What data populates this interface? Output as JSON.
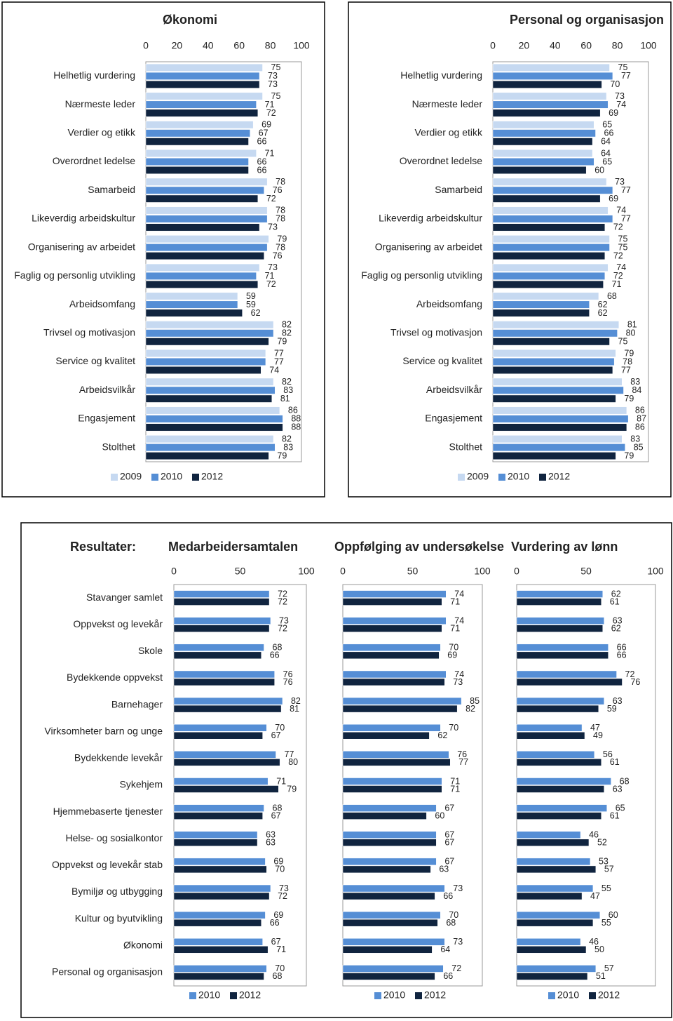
{
  "results_heading": "Resultater:",
  "chart_data": [
    {
      "type": "bar",
      "orientation": "horizontal",
      "title": "Økonomi",
      "categories": [
        "Helhetlig vurdering",
        "Nærmeste leder",
        "Verdier og etikk",
        "Overordnet ledelse",
        "Samarbeid",
        "Likeverdig arbeidskultur",
        "Organisering av arbeidet",
        "Faglig og personlig utvikling",
        "Arbeidsomfang",
        "Trivsel og motivasjon",
        "Service og kvalitet",
        "Arbeidsvilkår",
        "Engasjement",
        "Stolthet"
      ],
      "series": [
        {
          "name": "2009",
          "color": "#c6d9f1",
          "values": [
            75,
            75,
            69,
            71,
            78,
            78,
            79,
            73,
            59,
            82,
            77,
            82,
            86,
            82
          ]
        },
        {
          "name": "2010",
          "color": "#558ed5",
          "values": [
            73,
            71,
            67,
            66,
            76,
            78,
            78,
            71,
            59,
            82,
            77,
            83,
            88,
            83
          ]
        },
        {
          "name": "2012",
          "color": "#10243f",
          "values": [
            73,
            72,
            66,
            66,
            72,
            73,
            76,
            72,
            62,
            79,
            74,
            81,
            88,
            79
          ]
        }
      ],
      "xlim": [
        0,
        100
      ],
      "xticks": [
        0,
        20,
        40,
        60,
        80,
        100
      ],
      "legend": "bottom"
    },
    {
      "type": "bar",
      "orientation": "horizontal",
      "title": "Personal og organisasjon",
      "categories": [
        "Helhetlig vurdering",
        "Nærmeste leder",
        "Verdier og etikk",
        "Overordnet ledelse",
        "Samarbeid",
        "Likeverdig arbeidskultur",
        "Organisering av arbeidet",
        "Faglig og personlig utvikling",
        "Arbeidsomfang",
        "Trivsel og motivasjon",
        "Service og kvalitet",
        "Arbeidsvilkår",
        "Engasjement",
        "Stolthet"
      ],
      "series": [
        {
          "name": "2009",
          "color": "#c6d9f1",
          "values": [
            75,
            73,
            65,
            64,
            73,
            74,
            75,
            74,
            68,
            81,
            79,
            83,
            86,
            83
          ]
        },
        {
          "name": "2010",
          "color": "#558ed5",
          "values": [
            77,
            74,
            66,
            65,
            77,
            77,
            75,
            72,
            62,
            80,
            78,
            84,
            87,
            85
          ]
        },
        {
          "name": "2012",
          "color": "#10243f",
          "values": [
            70,
            69,
            64,
            60,
            69,
            72,
            72,
            71,
            62,
            75,
            77,
            79,
            86,
            79
          ]
        }
      ],
      "xlim": [
        0,
        100
      ],
      "xticks": [
        0,
        20,
        40,
        60,
        80,
        100
      ],
      "legend": "bottom"
    },
    {
      "type": "bar",
      "orientation": "horizontal",
      "title": "Medarbeidersamtalen",
      "categories": [
        "Stavanger samlet",
        "Oppvekst og levekår",
        "Skole",
        "Bydekkende oppvekst",
        "Barnehager",
        "Virksomheter barn og unge",
        "Bydekkende levekår",
        "Sykehjem",
        "Hjemmebaserte tjenester",
        "Helse- og sosialkontor",
        "Oppvekst og levekår stab",
        "Bymiljø og utbygging",
        "Kultur og byutvikling",
        "Økonomi",
        "Personal og organisasjon"
      ],
      "series": [
        {
          "name": "2010",
          "color": "#558ed5",
          "values": [
            72,
            73,
            68,
            76,
            82,
            70,
            77,
            71,
            68,
            63,
            69,
            73,
            69,
            67,
            70
          ]
        },
        {
          "name": "2012",
          "color": "#10243f",
          "values": [
            72,
            72,
            66,
            76,
            81,
            67,
            80,
            79,
            67,
            63,
            70,
            72,
            66,
            71,
            68
          ]
        }
      ],
      "xlim": [
        0,
        100
      ],
      "xticks": [
        0,
        50,
        100
      ],
      "legend": "bottom"
    },
    {
      "type": "bar",
      "orientation": "horizontal",
      "title": "Oppfølging av undersøkelse",
      "series": [
        {
          "name": "2010",
          "color": "#558ed5",
          "values": [
            74,
            74,
            70,
            74,
            85,
            70,
            76,
            71,
            67,
            67,
            67,
            73,
            70,
            73,
            72
          ]
        },
        {
          "name": "2012",
          "color": "#10243f",
          "values": [
            71,
            71,
            69,
            73,
            82,
            62,
            77,
            71,
            60,
            67,
            63,
            66,
            68,
            64,
            66
          ]
        }
      ],
      "xlim": [
        0,
        100
      ],
      "xticks": [
        0,
        50,
        100
      ],
      "legend": "bottom"
    },
    {
      "type": "bar",
      "orientation": "horizontal",
      "title": "Vurdering av lønn",
      "series": [
        {
          "name": "2010",
          "color": "#558ed5",
          "values": [
            62,
            63,
            66,
            72,
            63,
            47,
            56,
            68,
            65,
            46,
            53,
            55,
            60,
            46,
            57
          ]
        },
        {
          "name": "2012",
          "color": "#10243f",
          "values": [
            61,
            62,
            66,
            76,
            59,
            49,
            61,
            63,
            61,
            52,
            57,
            47,
            55,
            50,
            51
          ]
        }
      ],
      "xlim": [
        0,
        100
      ],
      "xticks": [
        0,
        50,
        100
      ],
      "legend": "bottom"
    }
  ]
}
